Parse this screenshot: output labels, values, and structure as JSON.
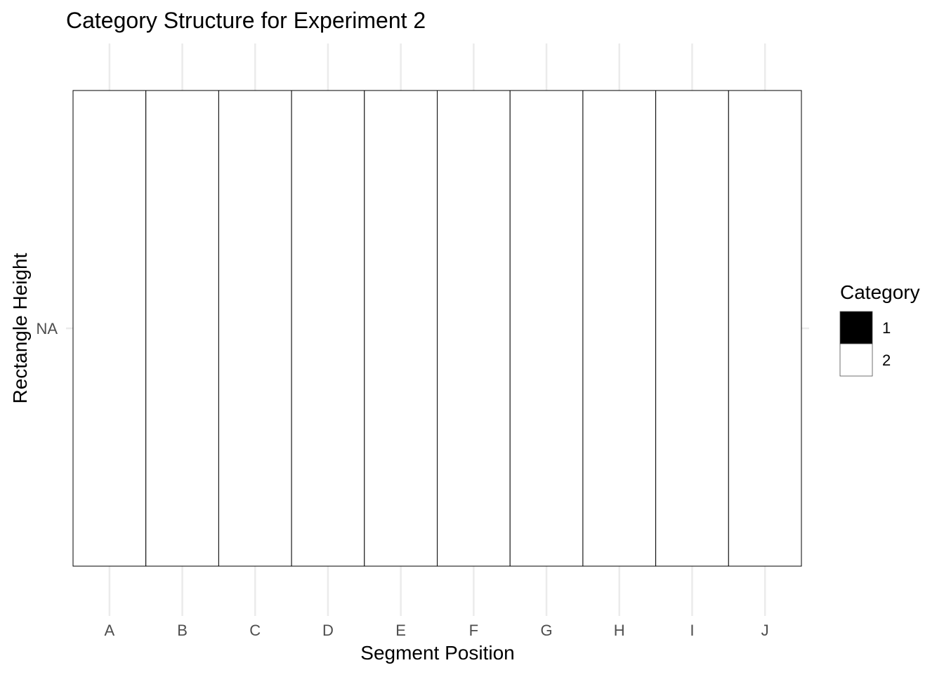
{
  "chart_data": {
    "type": "heatmap",
    "title": "Category Structure for Experiment 2",
    "xlabel": "Segment Position",
    "ylabel": "Rectangle Height",
    "categories": [
      "A",
      "B",
      "C",
      "D",
      "E",
      "F",
      "G",
      "H",
      "I",
      "J"
    ],
    "y_categories": [
      "NA"
    ],
    "cells": [
      {
        "x": "A",
        "y": "NA",
        "category": "2"
      },
      {
        "x": "B",
        "y": "NA",
        "category": "2"
      },
      {
        "x": "C",
        "y": "NA",
        "category": "2"
      },
      {
        "x": "D",
        "y": "NA",
        "category": "2"
      },
      {
        "x": "E",
        "y": "NA",
        "category": "2"
      },
      {
        "x": "F",
        "y": "NA",
        "category": "2"
      },
      {
        "x": "G",
        "y": "NA",
        "category": "2"
      },
      {
        "x": "H",
        "y": "NA",
        "category": "2"
      },
      {
        "x": "I",
        "y": "NA",
        "category": "2"
      },
      {
        "x": "J",
        "y": "NA",
        "category": "2"
      }
    ],
    "legend": {
      "title": "Category",
      "position": "right",
      "items": [
        {
          "label": "1",
          "color": "#000000"
        },
        {
          "label": "2",
          "color": "#ffffff"
        }
      ]
    },
    "grid": true,
    "colors": {
      "grid": "#ebebeb",
      "cell_border": "#000000",
      "axis_text": "#4d4d4d",
      "title_text": "#000000"
    }
  }
}
